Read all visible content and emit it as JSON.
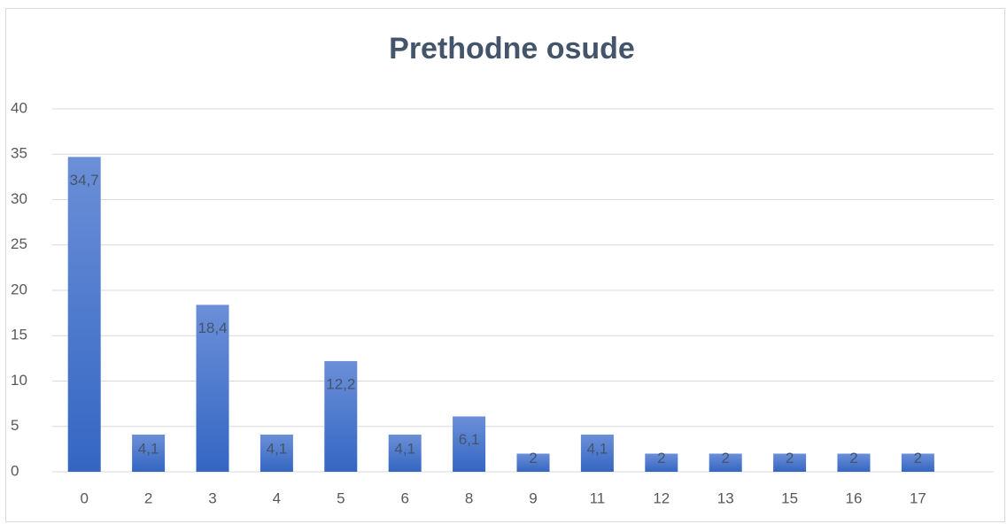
{
  "chart_data": {
    "type": "bar",
    "title": "Prethodne osude",
    "categories": [
      "0",
      "2",
      "3",
      "4",
      "5",
      "6",
      "8",
      "9",
      "11",
      "12",
      "13",
      "15",
      "16",
      "17"
    ],
    "values": [
      34.7,
      4.1,
      18.4,
      4.1,
      12.2,
      4.1,
      6.1,
      2,
      4.1,
      2,
      2,
      2,
      2,
      2
    ],
    "value_labels": [
      "34,7",
      "4,1",
      "18,4",
      "4,1",
      "12,2",
      "4,1",
      "6,1",
      "2",
      "4,1",
      "2",
      "2",
      "2",
      "2",
      "2"
    ],
    "color": "#4472c4",
    "ylim": [
      0,
      40
    ],
    "yticks": [
      0,
      5,
      10,
      15,
      20,
      25,
      30,
      35,
      40
    ],
    "grid": true
  }
}
